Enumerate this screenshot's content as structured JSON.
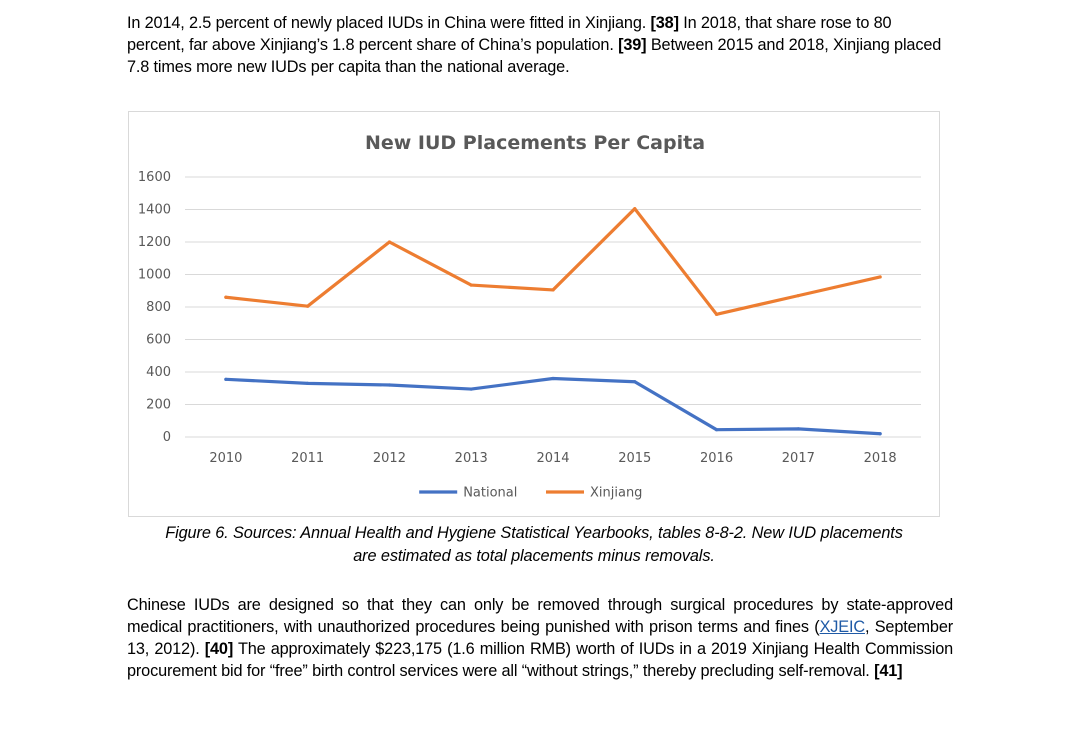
{
  "intro": {
    "s1": "In 2014, 2.5 percent of newly placed IUDs in China were fitted in Xinjiang. ",
    "ref1": "[38]",
    "s2": " In 2018, that share rose to 80 percent, far above Xinjiang’s 1.8 percent share of China’s population. ",
    "ref2": "[39]",
    "s3": " Between 2015 and 2018, Xinjiang placed 7.8 times more new IUDs per capita than the national average."
  },
  "caption": {
    "line1": "Figure 6. Sources: Annual Health and Hygiene Statistical Yearbooks, tables 8-8-2. New IUD placements",
    "line2": "are estimated as total placements minus removals."
  },
  "body": {
    "s1": "Chinese IUDs are designed so that they can only be removed through surgical procedures by state-approved medical practitioners, with unauthorized procedures being punished with prison terms and fines (",
    "link": "XJEIC",
    "s2": ", September 13, 2012). ",
    "ref1": "[40]",
    "s3": " The approximately $223,175 (1.6 million RMB) worth of IUDs in a 2019 Xinjiang Health Commission procurement bid for “free” birth control services were all “without strings,” thereby precluding self-removal. ",
    "ref2": "[41]"
  },
  "chart_data": {
    "type": "line",
    "title": "New IUD Placements Per Capita",
    "categories": [
      "2010",
      "2011",
      "2012",
      "2013",
      "2014",
      "2015",
      "2016",
      "2017",
      "2018"
    ],
    "series": [
      {
        "name": "National",
        "color": "#4472c4",
        "values": [
          355,
          330,
          320,
          295,
          360,
          340,
          45,
          50,
          20
        ]
      },
      {
        "name": "Xinjiang",
        "color": "#ed7d31",
        "values": [
          860,
          805,
          1200,
          935,
          905,
          1405,
          755,
          870,
          985
        ]
      }
    ],
    "yticks": [
      "0",
      "200",
      "400",
      "600",
      "800",
      "1000",
      "1200",
      "1400",
      "1600"
    ],
    "ylim": [
      0,
      1600
    ],
    "xlabel": "",
    "ylabel": "",
    "grid": true,
    "legend": "bottom"
  }
}
